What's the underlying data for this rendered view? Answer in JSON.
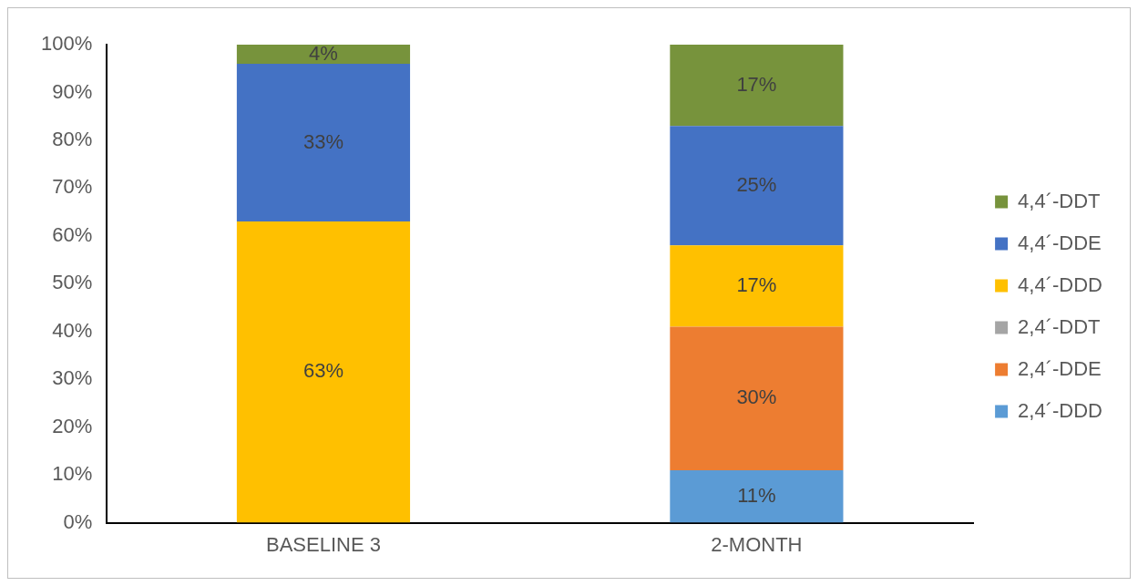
{
  "chart_data": {
    "type": "bar",
    "stacked": true,
    "categories": [
      "BASELINE 3",
      "2-MONTH"
    ],
    "series": [
      {
        "name": "2,4´-DDD",
        "color": "#5b9bd5",
        "values": [
          0,
          11
        ],
        "value_labels": [
          null,
          "11%"
        ]
      },
      {
        "name": "2,4´-DDE",
        "color": "#ed7d31",
        "values": [
          0,
          30
        ],
        "value_labels": [
          null,
          "30%"
        ]
      },
      {
        "name": "2,4´-DDT",
        "color": "#a5a5a5",
        "values": [
          0,
          0
        ],
        "value_labels": [
          null,
          null
        ]
      },
      {
        "name": "4,4´-DDD",
        "color": "#ffc000",
        "values": [
          63,
          17
        ],
        "value_labels": [
          "63%",
          "17%"
        ]
      },
      {
        "name": "4,4´-DDE",
        "color": "#4472c4",
        "values": [
          33,
          25
        ],
        "value_labels": [
          "33%",
          "25%"
        ]
      },
      {
        "name": "4,4´-DDT",
        "color": "#77933c",
        "values": [
          4,
          17
        ],
        "value_labels": [
          "4%",
          "17%"
        ]
      }
    ],
    "ylim": [
      0,
      100
    ],
    "yticks": [
      {
        "value": 0,
        "label": "0%"
      },
      {
        "value": 10,
        "label": "10%"
      },
      {
        "value": 20,
        "label": "20%"
      },
      {
        "value": 30,
        "label": "30%"
      },
      {
        "value": 40,
        "label": "40%"
      },
      {
        "value": 50,
        "label": "50%"
      },
      {
        "value": 60,
        "label": "60%"
      },
      {
        "value": 70,
        "label": "70%"
      },
      {
        "value": 80,
        "label": "80%"
      },
      {
        "value": 90,
        "label": "90%"
      },
      {
        "value": 100,
        "label": "100%"
      }
    ],
    "grid": false,
    "legend": "right"
  }
}
